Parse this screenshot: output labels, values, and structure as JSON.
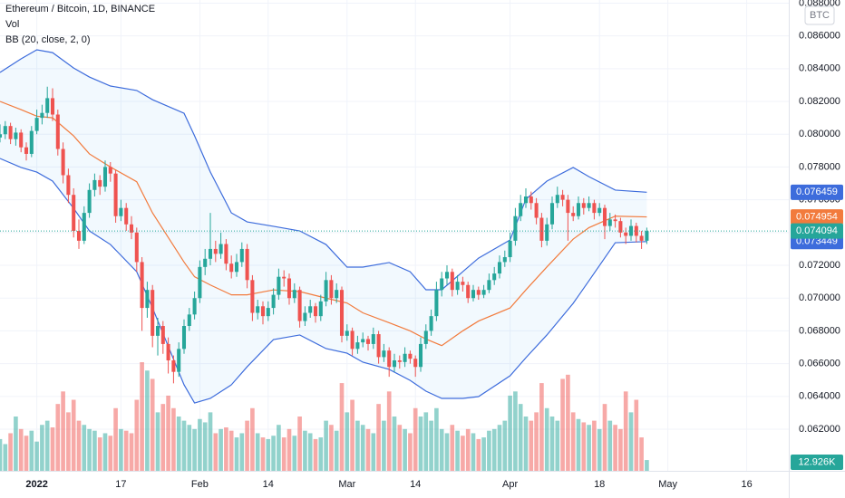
{
  "chart_data": {
    "type": "candlestick",
    "title": "Ethereum / Bitcoin, 1D, BINANCE",
    "currency": "BTC",
    "up_color": "#26a69a",
    "down_color": "#ef5350",
    "x": [
      "2021-12-25",
      "2021-12-26",
      "2021-12-27",
      "2021-12-28",
      "2021-12-29",
      "2021-12-30",
      "2021-12-31",
      "2022-01-01",
      "2022-01-02",
      "2022-01-03",
      "2022-01-04",
      "2022-01-05",
      "2022-01-06",
      "2022-01-07",
      "2022-01-08",
      "2022-01-09",
      "2022-01-10",
      "2022-01-11",
      "2022-01-12",
      "2022-01-13",
      "2022-01-14",
      "2022-01-15",
      "2022-01-16",
      "2022-01-17",
      "2022-01-18",
      "2022-01-19",
      "2022-01-20",
      "2022-01-21",
      "2022-01-22",
      "2022-01-23",
      "2022-01-24",
      "2022-01-25",
      "2022-01-26",
      "2022-01-27",
      "2022-01-28",
      "2022-01-29",
      "2022-01-30",
      "2022-01-31",
      "2022-02-01",
      "2022-02-02",
      "2022-02-03",
      "2022-02-04",
      "2022-02-05",
      "2022-02-06",
      "2022-02-07",
      "2022-02-08",
      "2022-02-09",
      "2022-02-10",
      "2022-02-11",
      "2022-02-12",
      "2022-02-13",
      "2022-02-14",
      "2022-02-15",
      "2022-02-16",
      "2022-02-17",
      "2022-02-18",
      "2022-02-19",
      "2022-02-20",
      "2022-02-21",
      "2022-02-22",
      "2022-02-23",
      "2022-02-24",
      "2022-02-25",
      "2022-02-26",
      "2022-02-27",
      "2022-02-28",
      "2022-03-01",
      "2022-03-02",
      "2022-03-03",
      "2022-03-04",
      "2022-03-05",
      "2022-03-06",
      "2022-03-07",
      "2022-03-08",
      "2022-03-09",
      "2022-03-10",
      "2022-03-11",
      "2022-03-12",
      "2022-03-13",
      "2022-03-14",
      "2022-03-15",
      "2022-03-16",
      "2022-03-17",
      "2022-03-18",
      "2022-03-19",
      "2022-03-20",
      "2022-03-21",
      "2022-03-22",
      "2022-03-23",
      "2022-03-24",
      "2022-03-25",
      "2022-03-26",
      "2022-03-27",
      "2022-03-28",
      "2022-03-29",
      "2022-03-30",
      "2022-03-31",
      "2022-04-01",
      "2022-04-02",
      "2022-04-03",
      "2022-04-04",
      "2022-04-05",
      "2022-04-06",
      "2022-04-07",
      "2022-04-08",
      "2022-04-09",
      "2022-04-10",
      "2022-04-11",
      "2022-04-12",
      "2022-04-13",
      "2022-04-14",
      "2022-04-15",
      "2022-04-16",
      "2022-04-17",
      "2022-04-18",
      "2022-04-19",
      "2022-04-20",
      "2022-04-21",
      "2022-04-22",
      "2022-04-23",
      "2022-04-24",
      "2022-04-25",
      "2022-04-26",
      "2022-04-27"
    ],
    "candles": [
      [
        0.0798,
        0.0806,
        0.0795,
        0.08
      ],
      [
        0.08,
        0.0808,
        0.0797,
        0.0805
      ],
      [
        0.0805,
        0.0807,
        0.0794,
        0.0797
      ],
      [
        0.0797,
        0.0804,
        0.0793,
        0.0801
      ],
      [
        0.0801,
        0.0803,
        0.0789,
        0.0792
      ],
      [
        0.0792,
        0.0795,
        0.0784,
        0.0788
      ],
      [
        0.0788,
        0.0805,
        0.0786,
        0.0802
      ],
      [
        0.0802,
        0.0815,
        0.08,
        0.081
      ],
      [
        0.081,
        0.0818,
        0.0806,
        0.0813
      ],
      [
        0.0813,
        0.0829,
        0.081,
        0.0822
      ],
      [
        0.0822,
        0.0828,
        0.0808,
        0.0812
      ],
      [
        0.0812,
        0.0815,
        0.0787,
        0.0791
      ],
      [
        0.0791,
        0.0795,
        0.077,
        0.0775
      ],
      [
        0.0775,
        0.0779,
        0.0758,
        0.0763
      ],
      [
        0.0763,
        0.0767,
        0.0737,
        0.0741
      ],
      [
        0.0741,
        0.0748,
        0.073,
        0.0735
      ],
      [
        0.0735,
        0.0756,
        0.0733,
        0.0752
      ],
      [
        0.0752,
        0.077,
        0.0749,
        0.0766
      ],
      [
        0.0766,
        0.0776,
        0.0762,
        0.0772
      ],
      [
        0.0772,
        0.0775,
        0.0763,
        0.0768
      ],
      [
        0.0768,
        0.0784,
        0.0765,
        0.078
      ],
      [
        0.078,
        0.0783,
        0.0771,
        0.0776
      ],
      [
        0.0776,
        0.0778,
        0.0746,
        0.075
      ],
      [
        0.075,
        0.076,
        0.0747,
        0.0755
      ],
      [
        0.0755,
        0.0758,
        0.0741,
        0.0745
      ],
      [
        0.0745,
        0.075,
        0.0736,
        0.074
      ],
      [
        0.074,
        0.0743,
        0.0716,
        0.0722
      ],
      [
        0.0722,
        0.0725,
        0.068,
        0.0694
      ],
      [
        0.0694,
        0.071,
        0.0688,
        0.0705
      ],
      [
        0.0705,
        0.0708,
        0.067,
        0.0677
      ],
      [
        0.0677,
        0.0688,
        0.0665,
        0.0683
      ],
      [
        0.0683,
        0.0686,
        0.0666,
        0.0672
      ],
      [
        0.0672,
        0.0676,
        0.0654,
        0.0662
      ],
      [
        0.0662,
        0.0665,
        0.0648,
        0.0655
      ],
      [
        0.0655,
        0.0673,
        0.0652,
        0.0669
      ],
      [
        0.0669,
        0.0687,
        0.0666,
        0.0683
      ],
      [
        0.0683,
        0.0694,
        0.068,
        0.069
      ],
      [
        0.069,
        0.0704,
        0.0687,
        0.07
      ],
      [
        0.07,
        0.0723,
        0.0697,
        0.0719
      ],
      [
        0.0719,
        0.073,
        0.0714,
        0.0724
      ],
      [
        0.0724,
        0.0752,
        0.072,
        0.073
      ],
      [
        0.073,
        0.0735,
        0.0722,
        0.0727
      ],
      [
        0.0727,
        0.074,
        0.0724,
        0.0733
      ],
      [
        0.0733,
        0.0736,
        0.0717,
        0.0721
      ],
      [
        0.0721,
        0.0726,
        0.0712,
        0.0716
      ],
      [
        0.0716,
        0.0727,
        0.0713,
        0.0722
      ],
      [
        0.0722,
        0.0734,
        0.0719,
        0.073
      ],
      [
        0.073,
        0.0733,
        0.0706,
        0.0711
      ],
      [
        0.0711,
        0.0714,
        0.0686,
        0.0691
      ],
      [
        0.0691,
        0.0699,
        0.0687,
        0.0695
      ],
      [
        0.0695,
        0.0698,
        0.0684,
        0.0689
      ],
      [
        0.0689,
        0.0698,
        0.0686,
        0.0694
      ],
      [
        0.0694,
        0.0706,
        0.069,
        0.0702
      ],
      [
        0.0702,
        0.0718,
        0.0699,
        0.0713
      ],
      [
        0.0713,
        0.0717,
        0.0707,
        0.0712
      ],
      [
        0.0712,
        0.0715,
        0.0696,
        0.07
      ],
      [
        0.07,
        0.0709,
        0.0697,
        0.0705
      ],
      [
        0.0705,
        0.0707,
        0.0682,
        0.0686
      ],
      [
        0.0686,
        0.0695,
        0.0683,
        0.0691
      ],
      [
        0.0691,
        0.0699,
        0.0688,
        0.0695
      ],
      [
        0.0695,
        0.0697,
        0.0685,
        0.0689
      ],
      [
        0.0689,
        0.0702,
        0.0686,
        0.0698
      ],
      [
        0.0698,
        0.0716,
        0.0695,
        0.0711
      ],
      [
        0.0711,
        0.0714,
        0.0696,
        0.07
      ],
      [
        0.07,
        0.0709,
        0.0697,
        0.0705
      ],
      [
        0.0705,
        0.0707,
        0.0673,
        0.0677
      ],
      [
        0.0677,
        0.0684,
        0.0674,
        0.068
      ],
      [
        0.068,
        0.0682,
        0.0665,
        0.0669
      ],
      [
        0.0669,
        0.0677,
        0.0666,
        0.0673
      ],
      [
        0.0673,
        0.0679,
        0.067,
        0.0675
      ],
      [
        0.0675,
        0.0677,
        0.0668,
        0.0672
      ],
      [
        0.0672,
        0.0682,
        0.0669,
        0.0678
      ],
      [
        0.0678,
        0.068,
        0.066,
        0.0664
      ],
      [
        0.0664,
        0.0672,
        0.0661,
        0.0668
      ],
      [
        0.0668,
        0.067,
        0.0652,
        0.0658
      ],
      [
        0.0658,
        0.0666,
        0.0655,
        0.0662
      ],
      [
        0.0662,
        0.0665,
        0.0657,
        0.0661
      ],
      [
        0.0661,
        0.067,
        0.0658,
        0.0666
      ],
      [
        0.0666,
        0.0668,
        0.066,
        0.0663
      ],
      [
        0.0663,
        0.0665,
        0.0652,
        0.0658
      ],
      [
        0.0658,
        0.0676,
        0.0655,
        0.0672
      ],
      [
        0.0672,
        0.0684,
        0.0669,
        0.068
      ],
      [
        0.068,
        0.0693,
        0.0677,
        0.0689
      ],
      [
        0.0689,
        0.071,
        0.0686,
        0.0705
      ],
      [
        0.0705,
        0.0716,
        0.0701,
        0.0712
      ],
      [
        0.0712,
        0.072,
        0.0708,
        0.0716
      ],
      [
        0.0716,
        0.0718,
        0.0701,
        0.0705
      ],
      [
        0.0705,
        0.0714,
        0.0702,
        0.071
      ],
      [
        0.071,
        0.0713,
        0.0704,
        0.0708
      ],
      [
        0.0708,
        0.071,
        0.0697,
        0.07
      ],
      [
        0.07,
        0.0708,
        0.0698,
        0.0705
      ],
      [
        0.0705,
        0.0707,
        0.0699,
        0.0702
      ],
      [
        0.0702,
        0.0708,
        0.07,
        0.0705
      ],
      [
        0.0705,
        0.0715,
        0.0703,
        0.0711
      ],
      [
        0.0711,
        0.0719,
        0.0708,
        0.0715
      ],
      [
        0.0715,
        0.0726,
        0.0712,
        0.0722
      ],
      [
        0.0722,
        0.0729,
        0.0719,
        0.0725
      ],
      [
        0.0725,
        0.074,
        0.0722,
        0.0735
      ],
      [
        0.0735,
        0.0755,
        0.0732,
        0.075
      ],
      [
        0.075,
        0.0763,
        0.0747,
        0.0758
      ],
      [
        0.0758,
        0.0767,
        0.0755,
        0.0762
      ],
      [
        0.0762,
        0.0765,
        0.0754,
        0.0758
      ],
      [
        0.0758,
        0.0761,
        0.0745,
        0.0749
      ],
      [
        0.0749,
        0.0752,
        0.0731,
        0.0735
      ],
      [
        0.0735,
        0.0749,
        0.0732,
        0.0745
      ],
      [
        0.0745,
        0.0762,
        0.0742,
        0.0758
      ],
      [
        0.0758,
        0.0768,
        0.0755,
        0.0763
      ],
      [
        0.0763,
        0.0766,
        0.0756,
        0.076
      ],
      [
        0.076,
        0.0763,
        0.0735,
        0.0752
      ],
      [
        0.0752,
        0.0756,
        0.0747,
        0.075
      ],
      [
        0.075,
        0.0762,
        0.0748,
        0.0758
      ],
      [
        0.0758,
        0.0761,
        0.0751,
        0.0755
      ],
      [
        0.0755,
        0.0762,
        0.0753,
        0.0758
      ],
      [
        0.0758,
        0.076,
        0.0748,
        0.0752
      ],
      [
        0.0752,
        0.0758,
        0.075,
        0.0755
      ],
      [
        0.0755,
        0.0757,
        0.0736,
        0.0744
      ],
      [
        0.0744,
        0.0752,
        0.0741,
        0.0748
      ],
      [
        0.0748,
        0.0751,
        0.0743,
        0.0747
      ],
      [
        0.0747,
        0.0749,
        0.0737,
        0.074
      ],
      [
        0.074,
        0.0743,
        0.0733,
        0.0738
      ],
      [
        0.0738,
        0.0748,
        0.0735,
        0.0744
      ],
      [
        0.0744,
        0.0746,
        0.0734,
        0.0738
      ],
      [
        0.0738,
        0.0741,
        0.073,
        0.0735
      ],
      [
        0.0735,
        0.0743,
        0.0733,
        0.074094
      ]
    ],
    "volume": {
      "name": "Vol",
      "last_label": "12.926K",
      "values": [
        38,
        32,
        45,
        65,
        50,
        42,
        48,
        35,
        55,
        60,
        52,
        80,
        95,
        70,
        85,
        60,
        55,
        50,
        48,
        40,
        45,
        42,
        75,
        50,
        48,
        45,
        85,
        130,
        120,
        110,
        70,
        80,
        90,
        75,
        65,
        60,
        55,
        50,
        62,
        58,
        70,
        45,
        50,
        52,
        48,
        40,
        45,
        60,
        75,
        45,
        40,
        38,
        42,
        55,
        40,
        50,
        42,
        65,
        48,
        45,
        38,
        40,
        60,
        55,
        48,
        105,
        70,
        85,
        60,
        55,
        50,
        45,
        80,
        60,
        95,
        65,
        55,
        50,
        45,
        75,
        65,
        70,
        60,
        75,
        50,
        45,
        55,
        48,
        42,
        50,
        45,
        38,
        40,
        48,
        50,
        55,
        60,
        90,
        95,
        80,
        65,
        60,
        70,
        105,
        75,
        65,
        60,
        110,
        115,
        70,
        62,
        58,
        55,
        60,
        50,
        80,
        60,
        55,
        50,
        95,
        70,
        85,
        40,
        12.926
      ]
    },
    "bollinger": {
      "name": "BB (20, close, 2, 0)",
      "x": [
        "2021-12-25",
        "2021-12-29",
        "2022-01-01",
        "2022-01-04",
        "2022-01-08",
        "2022-01-11",
        "2022-01-15",
        "2022-01-20",
        "2022-01-23",
        "2022-01-29",
        "2022-01-31",
        "2022-02-03",
        "2022-02-07",
        "2022-02-10",
        "2022-02-15",
        "2022-02-20",
        "2022-02-25",
        "2022-03-01",
        "2022-03-04",
        "2022-03-09",
        "2022-03-13",
        "2022-03-16",
        "2022-03-19",
        "2022-03-23",
        "2022-03-26",
        "2022-04-01",
        "2022-04-04",
        "2022-04-08",
        "2022-04-13",
        "2022-04-16",
        "2022-04-21",
        "2022-04-27"
      ],
      "series": [
        {
          "color": "#3d6cdc",
          "values": [
            0.08377,
            0.0846,
            0.08515,
            0.08498,
            0.08404,
            0.08349,
            0.08294,
            0.08267,
            0.08211,
            0.08128,
            0.0799,
            0.07769,
            0.0752,
            0.07465,
            0.07438,
            0.0741,
            0.07327,
            0.07189,
            0.07189,
            0.07217,
            0.07161,
            0.07051,
            0.07051,
            0.07161,
            0.07244,
            0.07355,
            0.07603,
            0.07714,
            0.07797,
            0.07741,
            0.07659,
            0.076459
          ]
        },
        {
          "color": "#f27b3d",
          "values": [
            0.082,
            0.0815,
            0.0811,
            0.081,
            0.0799,
            0.0788,
            0.078,
            0.0771,
            0.0752,
            0.0722,
            0.0713,
            0.0708,
            0.0702,
            0.0702,
            0.0705,
            0.0704,
            0.07,
            0.0697,
            0.0691,
            0.0685,
            0.068,
            0.0675,
            0.0671,
            0.068,
            0.0686,
            0.0694,
            0.0705,
            0.0719,
            0.0736,
            0.0743,
            0.075,
            0.074954
          ]
        },
        {
          "color": "#3d6cdc",
          "values": [
            0.07852,
            0.07797,
            0.07769,
            0.07714,
            0.07548,
            0.0741,
            0.07327,
            0.07161,
            0.0694,
            0.06471,
            0.0636,
            0.06388,
            0.06471,
            0.06581,
            0.06747,
            0.06775,
            0.06692,
            0.06664,
            0.06609,
            0.06565,
            0.06498,
            0.06432,
            0.06388,
            0.06388,
            0.06399,
            0.06526,
            0.06636,
            0.06775,
            0.06968,
            0.07106,
            0.07338,
            0.073449
          ]
        }
      ]
    },
    "xlim": [
      "2021-12-25",
      "2022-05-24"
    ],
    "ylim": [
      0.05946,
      0.08819
    ],
    "yticks": [
      {
        "value": 0.062,
        "label": "0.062000"
      },
      {
        "value": 0.064,
        "label": "0.064000"
      },
      {
        "value": 0.066,
        "label": "0.066000"
      },
      {
        "value": 0.068,
        "label": "0.068000"
      },
      {
        "value": 0.07,
        "label": "0.070000"
      },
      {
        "value": 0.072,
        "label": "0.072000"
      },
      {
        "value": 0.074,
        "label": "0.074000"
      },
      {
        "value": 0.076,
        "label": "0.076000"
      },
      {
        "value": 0.078,
        "label": "0.078000"
      },
      {
        "value": 0.08,
        "label": "0.080000"
      },
      {
        "value": 0.082,
        "label": "0.082000"
      },
      {
        "value": 0.084,
        "label": "0.084000"
      },
      {
        "value": 0.086,
        "label": "0.086000"
      },
      {
        "value": 0.088,
        "label": "0.088000"
      }
    ],
    "xticks": [
      {
        "value": "2022-01-01",
        "label": "2022"
      },
      {
        "value": "2022-01-17",
        "label": "17"
      },
      {
        "value": "2022-02-01",
        "label": "Feb"
      },
      {
        "value": "2022-02-14",
        "label": "14"
      },
      {
        "value": "2022-03-01",
        "label": "Mar"
      },
      {
        "value": "2022-03-14",
        "label": "14"
      },
      {
        "value": "2022-04-01",
        "label": "Apr"
      },
      {
        "value": "2022-04-18",
        "label": "18"
      },
      {
        "value": "2022-05-01",
        "label": "May"
      },
      {
        "value": "2022-05-16",
        "label": "16"
      }
    ],
    "grid": true,
    "last_price_line": true
  }
}
